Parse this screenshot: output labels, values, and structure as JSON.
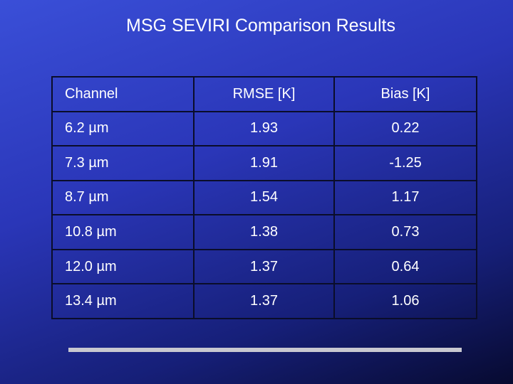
{
  "header": {
    "title": "MSG SEVIRI Comparison Results"
  },
  "table": {
    "columns": [
      "Channel",
      "RMSE [K]",
      "Bias [K]"
    ],
    "rows": [
      [
        "6.2 µm",
        "1.93",
        "0.22"
      ],
      [
        "7.3 µm",
        "1.91",
        "-1.25"
      ],
      [
        "8.7 µm",
        "1.54",
        "1.17"
      ],
      [
        "10.8 µm",
        "1.38",
        "0.73"
      ],
      [
        "12.0 µm",
        "1.37",
        "0.64"
      ],
      [
        "13.4 µm",
        "1.37",
        "1.06"
      ]
    ]
  }
}
